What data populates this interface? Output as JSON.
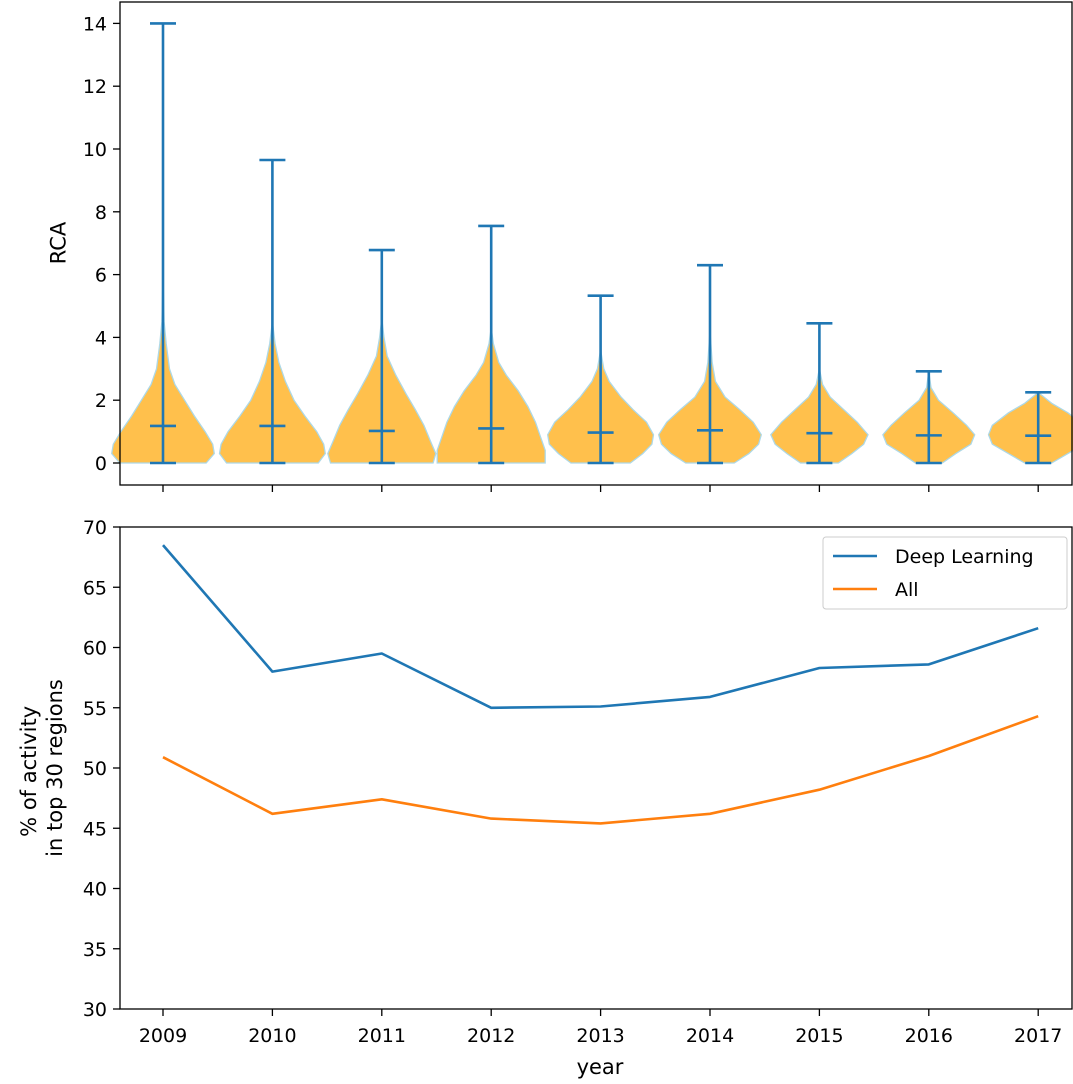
{
  "colors": {
    "deep_learning": "#1f77b4",
    "all": "#ff7f0e",
    "violin_fill": "#ffa500",
    "violin_edge": "#add8e6",
    "axis": "#000000"
  },
  "chart_data": [
    {
      "type": "violin",
      "ylabel": "RCA",
      "xlabel": "",
      "ylim": [
        -0.7,
        14.7
      ],
      "yticks": [
        "0",
        "2",
        "4",
        "6",
        "8",
        "10",
        "12",
        "14"
      ],
      "ytick_values": [
        0,
        2,
        4,
        6,
        8,
        10,
        12,
        14
      ],
      "categories": [
        "2009",
        "2010",
        "2011",
        "2012",
        "2013",
        "2014",
        "2015",
        "2016",
        "2017"
      ],
      "show_xtick_labels": false,
      "grid": false,
      "min": [
        0,
        0,
        0,
        0,
        0,
        0,
        0,
        0,
        0
      ],
      "max": [
        14.0,
        9.65,
        6.78,
        7.55,
        5.33,
        6.3,
        4.45,
        2.92,
        2.25
      ],
      "mean": [
        1.18,
        1.18,
        1.02,
        1.1,
        0.97,
        1.04,
        0.95,
        0.88,
        0.87
      ],
      "density_profiles": [
        [
          [
            0,
            0.8
          ],
          [
            0.3,
            0.95
          ],
          [
            0.6,
            0.92
          ],
          [
            1.0,
            0.78
          ],
          [
            1.5,
            0.58
          ],
          [
            2.0,
            0.4
          ],
          [
            2.5,
            0.22
          ],
          [
            3.0,
            0.12
          ],
          [
            3.8,
            0.06
          ],
          [
            4.5,
            0.02
          ],
          [
            6.0,
            0.0
          ],
          [
            14.0,
            0.0
          ]
        ],
        [
          [
            0,
            0.85
          ],
          [
            0.3,
            0.98
          ],
          [
            0.6,
            0.95
          ],
          [
            1.0,
            0.82
          ],
          [
            1.5,
            0.6
          ],
          [
            2.0,
            0.4
          ],
          [
            2.6,
            0.24
          ],
          [
            3.2,
            0.12
          ],
          [
            3.8,
            0.05
          ],
          [
            4.5,
            0.0
          ],
          [
            9.65,
            0.0
          ]
        ],
        [
          [
            0,
            0.95
          ],
          [
            0.3,
            1.0
          ],
          [
            0.7,
            0.9
          ],
          [
            1.2,
            0.78
          ],
          [
            1.7,
            0.62
          ],
          [
            2.2,
            0.45
          ],
          [
            2.8,
            0.26
          ],
          [
            3.4,
            0.1
          ],
          [
            4.0,
            0.04
          ],
          [
            4.6,
            0.0
          ],
          [
            6.78,
            0.0
          ]
        ],
        [
          [
            0,
            1.0
          ],
          [
            0.4,
            1.0
          ],
          [
            0.8,
            0.92
          ],
          [
            1.3,
            0.82
          ],
          [
            1.8,
            0.68
          ],
          [
            2.3,
            0.5
          ],
          [
            2.8,
            0.28
          ],
          [
            3.2,
            0.14
          ],
          [
            3.8,
            0.04
          ],
          [
            4.3,
            0.0
          ],
          [
            7.55,
            0.0
          ]
        ],
        [
          [
            0,
            0.55
          ],
          [
            0.3,
            0.78
          ],
          [
            0.6,
            0.95
          ],
          [
            0.9,
            0.98
          ],
          [
            1.3,
            0.85
          ],
          [
            1.7,
            0.6
          ],
          [
            2.1,
            0.38
          ],
          [
            2.6,
            0.16
          ],
          [
            3.0,
            0.06
          ],
          [
            3.6,
            0.0
          ],
          [
            5.33,
            0.0
          ]
        ],
        [
          [
            0,
            0.45
          ],
          [
            0.3,
            0.72
          ],
          [
            0.6,
            0.9
          ],
          [
            0.9,
            0.95
          ],
          [
            1.3,
            0.8
          ],
          [
            1.7,
            0.55
          ],
          [
            2.1,
            0.28
          ],
          [
            2.6,
            0.1
          ],
          [
            3.2,
            0.04
          ],
          [
            4.2,
            0.0
          ],
          [
            6.3,
            0.0
          ]
        ],
        [
          [
            0,
            0.35
          ],
          [
            0.3,
            0.6
          ],
          [
            0.6,
            0.82
          ],
          [
            0.9,
            0.9
          ],
          [
            1.3,
            0.7
          ],
          [
            1.7,
            0.45
          ],
          [
            2.1,
            0.2
          ],
          [
            2.5,
            0.06
          ],
          [
            3.0,
            0.0
          ],
          [
            4.45,
            0.0
          ]
        ],
        [
          [
            0,
            0.25
          ],
          [
            0.3,
            0.5
          ],
          [
            0.6,
            0.78
          ],
          [
            0.9,
            0.85
          ],
          [
            1.2,
            0.7
          ],
          [
            1.6,
            0.45
          ],
          [
            2.0,
            0.18
          ],
          [
            2.4,
            0.04
          ],
          [
            2.92,
            0.0
          ]
        ],
        [
          [
            0,
            0.25
          ],
          [
            0.3,
            0.55
          ],
          [
            0.6,
            0.85
          ],
          [
            0.9,
            0.92
          ],
          [
            1.2,
            0.85
          ],
          [
            1.6,
            0.55
          ],
          [
            1.9,
            0.25
          ],
          [
            2.25,
            0.0
          ]
        ]
      ]
    },
    {
      "type": "line",
      "xlabel": "year",
      "ylabel": "% of activity\nin top 30 regions",
      "ylabel_lines": [
        "% of activity",
        "in top 30 regions"
      ],
      "ylim": [
        30,
        70
      ],
      "yticks": [
        "30",
        "35",
        "40",
        "45",
        "50",
        "55",
        "60",
        "65",
        "70"
      ],
      "ytick_values": [
        30,
        35,
        40,
        45,
        50,
        55,
        60,
        65,
        70
      ],
      "x": [
        "2009",
        "2010",
        "2011",
        "2012",
        "2013",
        "2014",
        "2015",
        "2016",
        "2017"
      ],
      "grid": false,
      "legend_position": "top-right",
      "series": [
        {
          "name": "Deep Learning",
          "color": "#1f77b4",
          "values": [
            68.5,
            58.0,
            59.5,
            55.0,
            55.1,
            55.9,
            58.3,
            58.6,
            61.6
          ]
        },
        {
          "name": "All",
          "color": "#ff7f0e",
          "values": [
            50.9,
            46.2,
            47.4,
            45.8,
            45.4,
            46.2,
            48.2,
            51.0,
            54.3
          ]
        }
      ]
    }
  ]
}
